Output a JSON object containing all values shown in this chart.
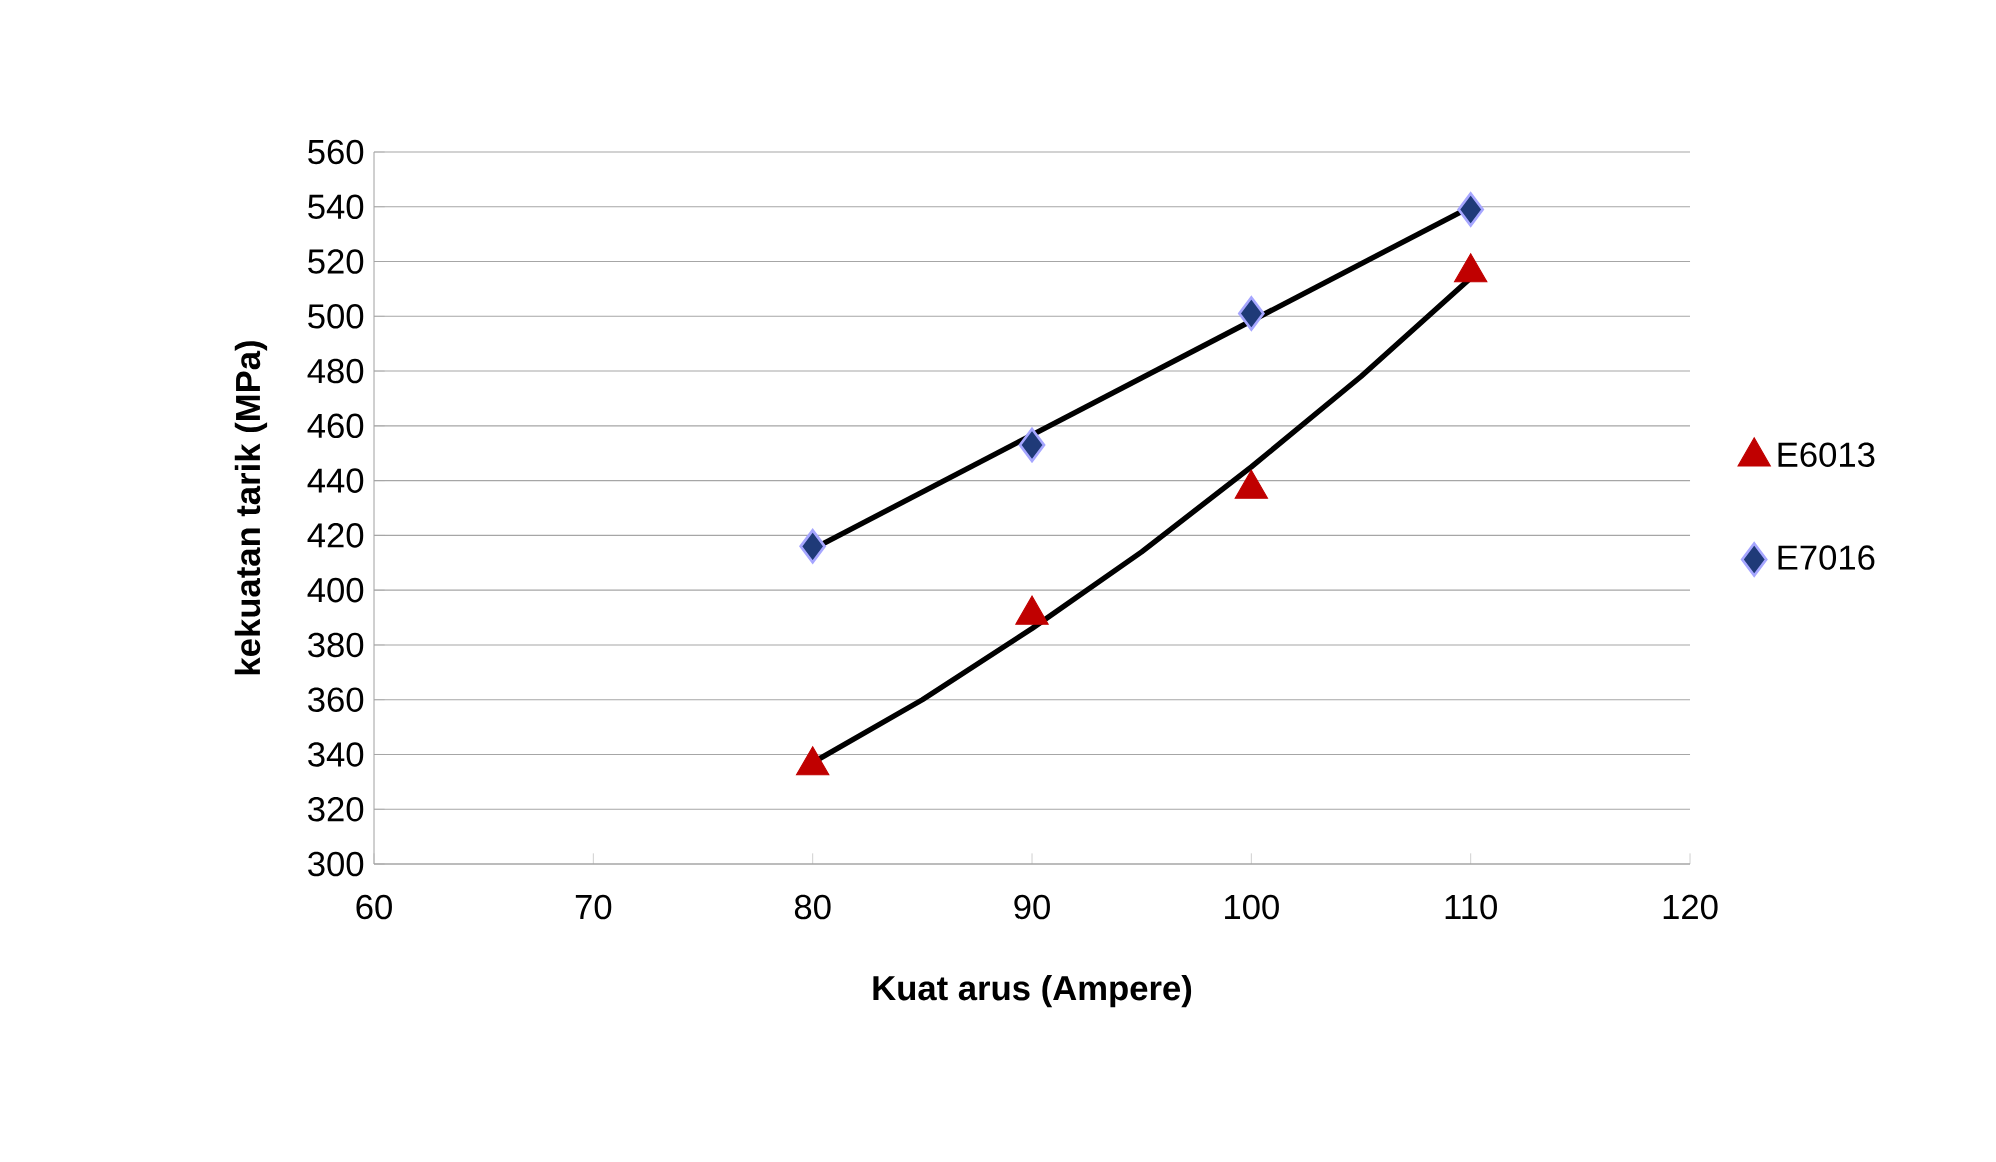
{
  "chart_data": {
    "type": "scatter",
    "xlabel": "Kuat arus (Ampere)",
    "ylabel": "kekuatan tarik (MPa)",
    "x": [
      80,
      90,
      100,
      110
    ],
    "series": [
      {
        "name": "E6013",
        "color": "#c00000",
        "marker": "triangle",
        "values": [
          336,
          391,
          437,
          516
        ]
      },
      {
        "name": "E7016",
        "color": "#1f3a78",
        "marker": "diamond",
        "values": [
          416,
          453,
          501,
          539
        ]
      },
      {
        "type": "line",
        "color": "#000000",
        "marker": "none",
        "x": [
          80,
          85,
          90,
          95,
          100,
          105,
          110
        ],
        "values": [
          337,
          360,
          386,
          414,
          445,
          478,
          514
        ]
      },
      {
        "type": "line",
        "color": "#000000",
        "marker": "none",
        "x": [
          80,
          110
        ],
        "values": [
          415,
          540
        ]
      }
    ],
    "xlim": [
      60,
      120
    ],
    "xticks": [
      60,
      70,
      80,
      90,
      100,
      110,
      120
    ],
    "ylim": [
      300,
      560
    ],
    "yticks": [
      300,
      320,
      340,
      360,
      380,
      400,
      420,
      440,
      460,
      480,
      500,
      520,
      540,
      560
    ],
    "grid": "y",
    "legend": "right"
  }
}
